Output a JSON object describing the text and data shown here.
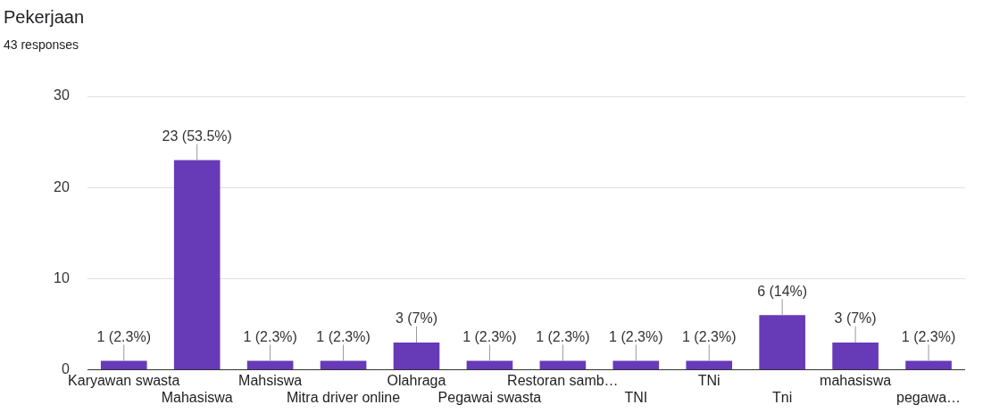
{
  "chart_data": {
    "type": "bar",
    "title": "Pekerjaan",
    "subtitle": "43 responses",
    "categories": [
      "Karyawan swasta",
      "Mahasiswa",
      "Mahsiswa",
      "Mitra driver online",
      "Olahraga",
      "Pegawai swasta",
      "Restoran samb…",
      "TNI",
      "TNi",
      "Tni",
      "mahasiswa",
      "pegawa…"
    ],
    "values": [
      1,
      23,
      1,
      1,
      3,
      1,
      1,
      1,
      1,
      6,
      3,
      1
    ],
    "value_labels": [
      "1 (2.3%)",
      "23 (53.5%)",
      "1 (2.3%)",
      "1 (2.3%)",
      "3 (7%)",
      "1 (2.3%)",
      "1 (2.3%)",
      "1 (2.3%)",
      "1 (2.3%)",
      "6 (14%)",
      "3 (7%)",
      "1 (2.3%)"
    ],
    "color": "#673ab7",
    "ylim": [
      0,
      30
    ],
    "yticks": [
      0,
      10,
      20,
      30
    ],
    "grid": "y",
    "legend": false
  }
}
